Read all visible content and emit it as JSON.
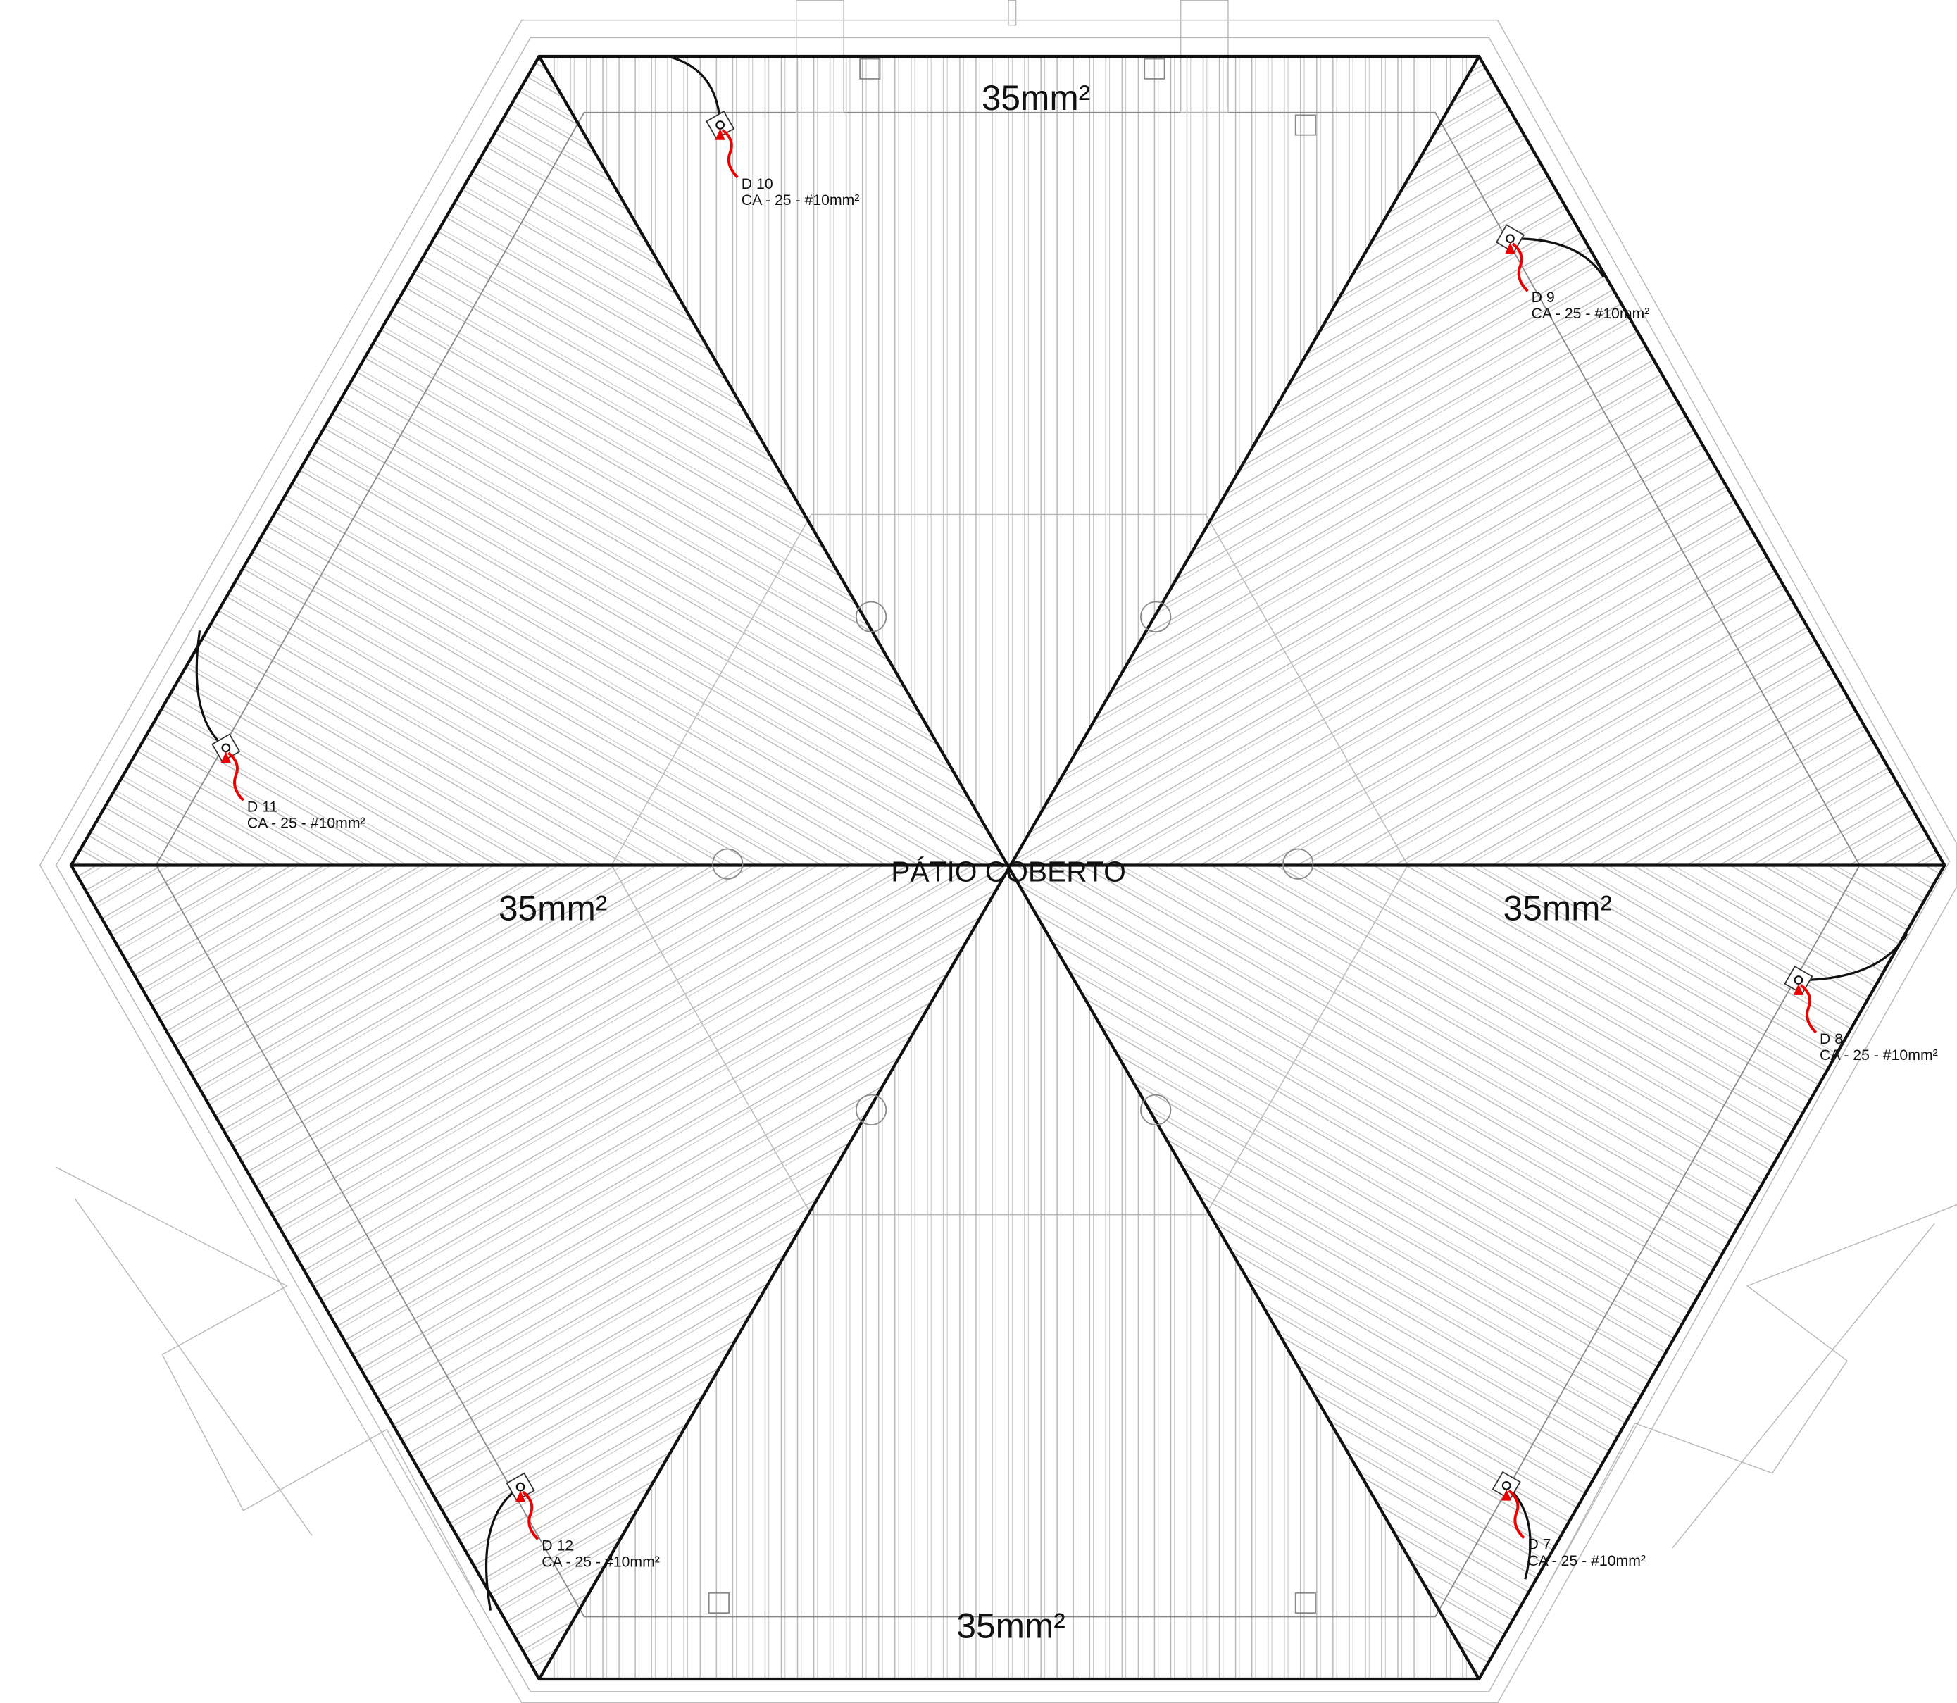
{
  "title": "PÁTIO COBERTO",
  "area_labels": [
    "35mm²",
    "35mm²",
    "35mm²",
    "35mm²"
  ],
  "devices": [
    {
      "id": "D 10",
      "cable": "CA - 25 - #10mm²"
    },
    {
      "id": "D 9",
      "cable": "CA - 25 - #10mm²"
    },
    {
      "id": "D 11",
      "cable": "CA - 25 - #10mm²"
    },
    {
      "id": "D 8",
      "cable": "CA - 25 - #10mm²"
    },
    {
      "id": "D 12",
      "cable": "CA - 25 - #10mm²"
    },
    {
      "id": "D 7",
      "cable": "CA - 25 - #10mm²"
    }
  ]
}
